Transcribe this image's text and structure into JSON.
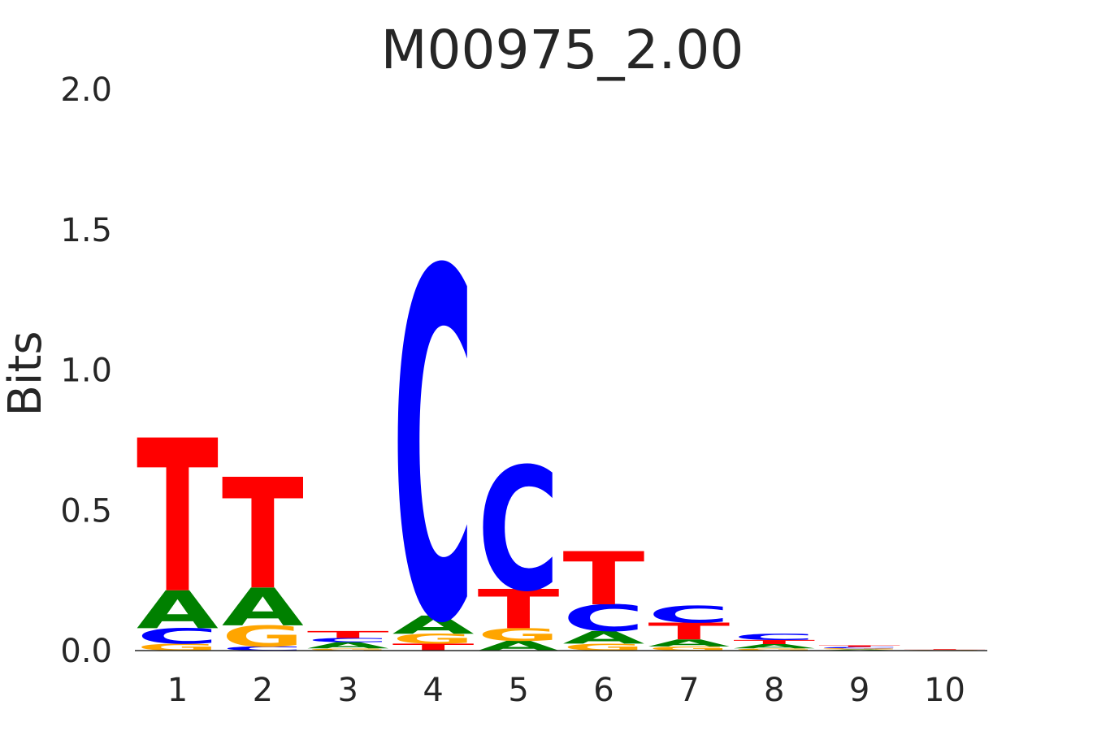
{
  "chart_data": {
    "type": "sequence-logo",
    "title": "M00975_2.00",
    "xlabel": "",
    "ylabel": "Bits",
    "ylim": [
      0,
      2.0
    ],
    "yticks": [
      "0.0",
      "0.5",
      "1.0",
      "1.5",
      "2.0"
    ],
    "x": [
      "1",
      "2",
      "3",
      "4",
      "5",
      "6",
      "7",
      "8",
      "9",
      "10"
    ],
    "colors": {
      "A": "#008000",
      "C": "#0000ff",
      "G": "#ffa500",
      "T": "#ff0000"
    },
    "positions": [
      {
        "position": "1",
        "stack": [
          {
            "base": "G",
            "bits": 0.025
          },
          {
            "base": "C",
            "bits": 0.055
          },
          {
            "base": "A",
            "bits": 0.135
          },
          {
            "base": "T",
            "bits": 0.545
          }
        ]
      },
      {
        "position": "2",
        "stack": [
          {
            "base": "C",
            "bits": 0.015
          },
          {
            "base": "G",
            "bits": 0.075
          },
          {
            "base": "A",
            "bits": 0.135
          },
          {
            "base": "T",
            "bits": 0.395
          }
        ]
      },
      {
        "position": "3",
        "stack": [
          {
            "base": "G",
            "bits": 0.008
          },
          {
            "base": "A",
            "bits": 0.022
          },
          {
            "base": "C",
            "bits": 0.015
          },
          {
            "base": "T",
            "bits": 0.025
          }
        ]
      },
      {
        "position": "4",
        "stack": [
          {
            "base": "T",
            "bits": 0.025
          },
          {
            "base": "G",
            "bits": 0.035
          },
          {
            "base": "A",
            "bits": 0.065
          },
          {
            "base": "C",
            "bits": 1.245
          }
        ]
      },
      {
        "position": "5",
        "stack": [
          {
            "base": "A",
            "bits": 0.035
          },
          {
            "base": "G",
            "bits": 0.045
          },
          {
            "base": "T",
            "bits": 0.14
          },
          {
            "base": "C",
            "bits": 0.44
          }
        ]
      },
      {
        "position": "6",
        "stack": [
          {
            "base": "G",
            "bits": 0.025
          },
          {
            "base": "A",
            "bits": 0.045
          },
          {
            "base": "C",
            "bits": 0.095
          },
          {
            "base": "T",
            "bits": 0.19
          }
        ]
      },
      {
        "position": "7",
        "stack": [
          {
            "base": "G",
            "bits": 0.015
          },
          {
            "base": "A",
            "bits": 0.025
          },
          {
            "base": "T",
            "bits": 0.06
          },
          {
            "base": "C",
            "bits": 0.06
          }
        ]
      },
      {
        "position": "8",
        "stack": [
          {
            "base": "G",
            "bits": 0.008
          },
          {
            "base": "A",
            "bits": 0.015
          },
          {
            "base": "T",
            "bits": 0.015
          },
          {
            "base": "C",
            "bits": 0.022
          }
        ]
      },
      {
        "position": "9",
        "stack": [
          {
            "base": "A",
            "bits": 0.004
          },
          {
            "base": "G",
            "bits": 0.004
          },
          {
            "base": "C",
            "bits": 0.005
          },
          {
            "base": "T",
            "bits": 0.006
          }
        ]
      },
      {
        "position": "10",
        "stack": [
          {
            "base": "A",
            "bits": 0.001
          },
          {
            "base": "C",
            "bits": 0.001
          },
          {
            "base": "G",
            "bits": 0.001
          },
          {
            "base": "T",
            "bits": 0.002
          }
        ]
      }
    ]
  }
}
